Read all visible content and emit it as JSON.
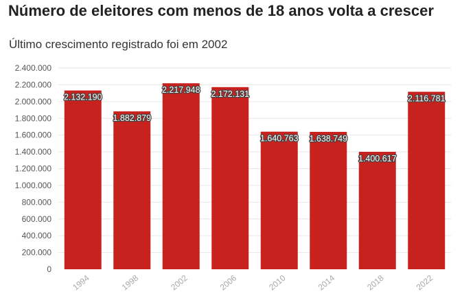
{
  "colors": {
    "bar": "#c8221e",
    "grid": "#e6e6e6"
  },
  "chart_data": {
    "type": "bar",
    "title": "Número de eleitores com menos de 18 anos volta a crescer",
    "subtitle": "Último crescimento registrado foi em 2002",
    "xlabel": "",
    "ylabel": "",
    "categories": [
      "1994",
      "1998",
      "2002",
      "2006",
      "2010",
      "2014",
      "2018",
      "2022"
    ],
    "values": [
      2132190,
      1882879,
      2217948,
      2172131,
      1640763,
      1638749,
      1400617,
      2116781
    ],
    "value_labels": [
      "2.132.190",
      "1.882.879",
      "2.217.948",
      "2.172.131",
      "1.640.763",
      "1.638.749",
      "1.400.617",
      "2.116.781"
    ],
    "ylim": [
      0,
      2400000
    ],
    "yticks": [
      0,
      200000,
      400000,
      600000,
      800000,
      1000000,
      1200000,
      1400000,
      1600000,
      1800000,
      2000000,
      2200000,
      2400000
    ],
    "ytick_labels": [
      "0",
      "200.000",
      "400.000",
      "600.000",
      "800.000",
      "1.000.000",
      "1.200.000",
      "1.400.000",
      "1.600.000",
      "1.800.000",
      "2.000.000",
      "2.200.000",
      "2.400.000"
    ],
    "grid": true,
    "legend": "none"
  }
}
